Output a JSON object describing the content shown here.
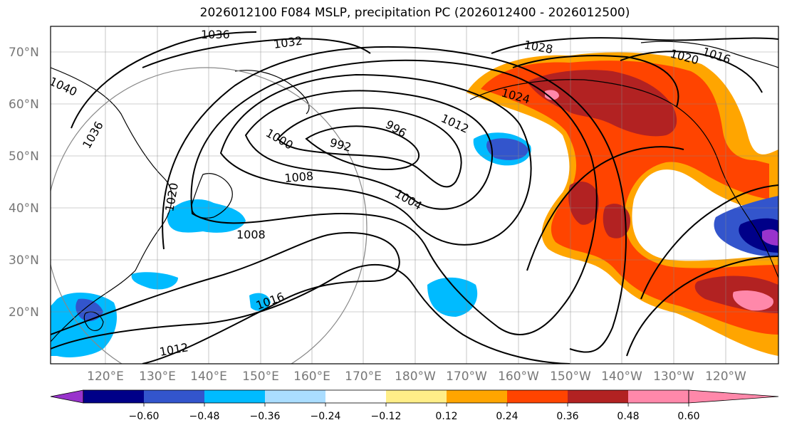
{
  "title": "2026012100 F084 MSLP, precipitation PC (2026012400 - 2026012500)",
  "map": {
    "lat_labels": [
      "70°N",
      "60°N",
      "50°N",
      "40°N",
      "30°N",
      "20°N"
    ],
    "lon_labels": [
      "120°E",
      "130°E",
      "140°E",
      "150°E",
      "160°E",
      "170°E",
      "180°W",
      "170°W",
      "160°W",
      "150°W",
      "140°W",
      "130°W",
      "120°W"
    ],
    "isobar_labels": [
      "1036",
      "1032",
      "1028",
      "1024",
      "1020",
      "1016",
      "1012",
      "1008",
      "1004",
      "1000",
      "996",
      "992",
      "1040"
    ]
  },
  "colorbar": {
    "tick_labels": [
      "−0.60",
      "−0.48",
      "−0.36",
      "−0.24",
      "−0.12",
      "0.12",
      "0.24",
      "0.36",
      "0.48",
      "0.60"
    ],
    "colors": [
      "#9933cc",
      "#000088",
      "#3355cc",
      "#00bbff",
      "#aaddff",
      "#ffffff",
      "#ffee88",
      "#ffa500",
      "#ff4400",
      "#b22222",
      "#ff88aa"
    ]
  }
}
